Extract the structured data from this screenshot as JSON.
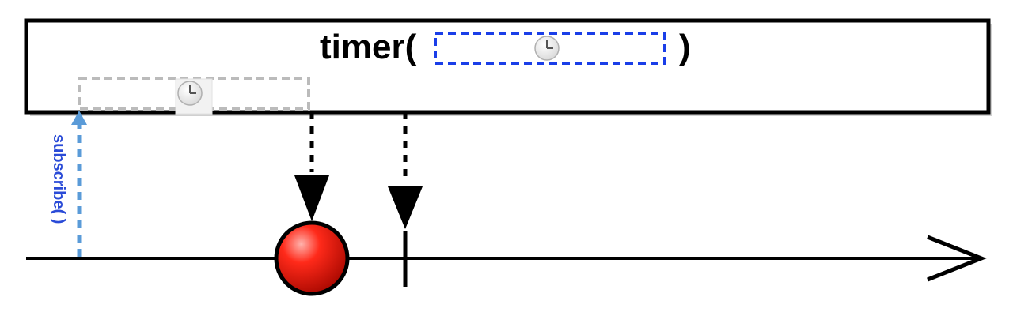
{
  "operator": {
    "name": "timer(",
    "close_paren": ")",
    "parameter_icon": "clock-icon"
  },
  "timeline": {
    "subscribe_label": "subscribe( )",
    "delay_icon": "clock-icon",
    "emission": {
      "kind": "marble",
      "color": "#e8140c"
    },
    "completion": {
      "kind": "tick"
    }
  },
  "colors": {
    "frame_stroke": "#000000",
    "shadow": "#aaaaaa",
    "param_box": "#1a3ee8",
    "delay_box": "#bbbbbb",
    "subscribe_arrow": "#5a9bd8",
    "subscribe_text": "#2a4bd7",
    "marble": "#e8140c"
  }
}
